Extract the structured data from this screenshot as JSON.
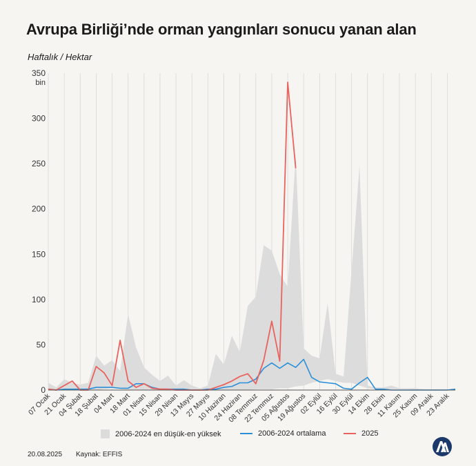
{
  "header": {
    "title": "Avrupa Birliği’nde orman yangınları sonucu yanan alan",
    "unit": "Haftalık / Hektar"
  },
  "footer": {
    "date": "20.08.2025",
    "source": "Kaynak: EFFIS"
  },
  "colors": {
    "range": "#dcdcdc",
    "average": "#2b8fd8",
    "year2025": "#e8625e",
    "grid": "#d9d9d9",
    "axis_text": "#333333"
  },
  "chart_data": {
    "type": "line",
    "title": "Avrupa Birliği’nde orman yangınları sonucu yanan alan",
    "ylabel": "Haftalık / Hektar",
    "y_unit_label": "bin",
    "ylim": [
      0,
      350
    ],
    "yticks": [
      0,
      50,
      100,
      150,
      200,
      250,
      300,
      350
    ],
    "grid": "vertical",
    "legend_position": "bottom",
    "week_count": 52,
    "x_tick_labels": [
      "07 Ocak",
      "21 Ocak",
      "04 Şubat",
      "18 Şubat",
      "04 Mart",
      "18 Mart",
      "01 Nisan",
      "15 Nisan",
      "29 Nisan",
      "13 Mayıs",
      "27 Mayıs",
      "10 Haziran",
      "24 Haziran",
      "08 Temmuz",
      "22 Temmuz",
      "05 Ağustos",
      "19 Ağustos",
      "02 Eylül",
      "16 Eylül",
      "30 Eylül",
      "14 Ekim",
      "28 Ekim",
      "11 Kasım",
      "25 Kasım",
      "09 Aralık",
      "23 Aralık"
    ],
    "series": [
      {
        "name": "2006-2024 en düşük-en yüksek",
        "kind": "range",
        "low": [
          0,
          0,
          0,
          0,
          0,
          0,
          0,
          1,
          2,
          1,
          0,
          0,
          0,
          0,
          0,
          0,
          0,
          0,
          0,
          0,
          0,
          0,
          0,
          0,
          0,
          0,
          1,
          1,
          1,
          2,
          2,
          4,
          5,
          8,
          10,
          12,
          10,
          8,
          8,
          5,
          2,
          1,
          1,
          1,
          1,
          1,
          0,
          0,
          0,
          0,
          0,
          0
        ],
        "high": [
          8,
          3,
          12,
          8,
          6,
          8,
          38,
          27,
          33,
          21,
          84,
          47,
          25,
          17,
          10,
          16,
          5,
          11,
          5,
          2,
          5,
          40,
          28,
          60,
          42,
          93,
          103,
          160,
          154,
          128,
          114,
          260,
          46,
          38,
          35,
          96,
          18,
          15,
          132,
          248,
          5,
          3,
          3,
          5,
          2,
          2,
          2,
          1,
          1,
          1,
          1,
          1
        ]
      },
      {
        "name": "2006-2024 ortalama",
        "kind": "line",
        "values": [
          1,
          0,
          1,
          1,
          1,
          1,
          3,
          3,
          3,
          2,
          2,
          7,
          7,
          3,
          1,
          1,
          1,
          1,
          0,
          0,
          1,
          1,
          3,
          4,
          8,
          8,
          12,
          24,
          30,
          24,
          30,
          25,
          34,
          14,
          9,
          8,
          7,
          2,
          1,
          8,
          14,
          1,
          1,
          0,
          0,
          0,
          0,
          0,
          0,
          0,
          0,
          1
        ]
      },
      {
        "name": "2025",
        "kind": "line",
        "values": [
          1,
          0,
          5,
          10,
          0,
          0,
          26,
          19,
          5,
          55,
          10,
          3,
          7,
          2,
          1,
          1,
          0,
          0,
          0,
          0,
          0,
          3,
          6,
          10,
          15,
          18,
          7,
          33,
          76,
          32,
          340,
          245
        ]
      }
    ]
  }
}
